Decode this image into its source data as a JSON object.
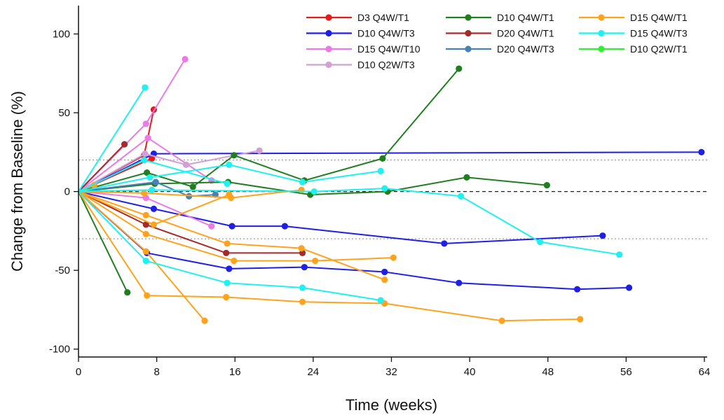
{
  "chart_data": {
    "type": "line",
    "xlabel": "Time (weeks)",
    "ylabel": "Change from Baseline (%)",
    "xlim": [
      0,
      64
    ],
    "ylim": [
      -105,
      118
    ],
    "xticks": [
      0,
      8,
      16,
      24,
      32,
      40,
      48,
      56,
      64
    ],
    "yticks": [
      -100,
      -50,
      0,
      50,
      100
    ],
    "xtick_labels": [
      "0",
      "8",
      "16",
      "24",
      "32",
      "40",
      "48",
      "56",
      "64"
    ],
    "ytick_labels": [
      "-100",
      "-50",
      "0",
      "50",
      "100"
    ],
    "reference_lines": [
      {
        "y": 0,
        "style": "dashed"
      },
      {
        "y": 20,
        "style": "dotted"
      },
      {
        "y": -30,
        "style": "dotted"
      }
    ],
    "legend_position": "top-right",
    "legend": [
      {
        "name": "D3 Q4W/T1",
        "color": "#e8191b"
      },
      {
        "name": "D10 Q4W/T3",
        "color": "#1f1fe6"
      },
      {
        "name": "D15 Q4W/T10",
        "color": "#ea7ae6"
      },
      {
        "name": "D10 Q2W/T3",
        "color": "#d39fd6"
      },
      {
        "name": "D10 Q4W/T1",
        "color": "#1f7f1f"
      },
      {
        "name": "D20 Q4W/T1",
        "color": "#a52a2a"
      },
      {
        "name": "D20 Q4W/T3",
        "color": "#4682b4"
      },
      {
        "name": "D15 Q4W/T1",
        "color": "#ffa21c"
      },
      {
        "name": "D15 Q4W/T3",
        "color": "#1ff0f0"
      },
      {
        "name": "D10 Q2W/T1",
        "color": "#33ee33"
      }
    ],
    "series": [
      {
        "group": "D3 Q4W/T1",
        "color": "#e8191b",
        "points": [
          [
            0,
            0
          ],
          [
            6.7,
            23
          ],
          [
            7.7,
            52
          ]
        ]
      },
      {
        "group": "D3 Q4W/T1",
        "color": "#e8191b",
        "points": [
          [
            0,
            0
          ],
          [
            7.5,
            21
          ]
        ]
      },
      {
        "group": "D10 Q4W/T3",
        "color": "#1f1fe6",
        "points": [
          [
            0,
            0
          ],
          [
            7.7,
            24
          ],
          [
            63.7,
            25
          ]
        ]
      },
      {
        "group": "D10 Q4W/T3",
        "color": "#1f1fe6",
        "points": [
          [
            0,
            0
          ],
          [
            7.7,
            -11
          ],
          [
            15.7,
            -22
          ],
          [
            21.1,
            -22
          ],
          [
            37.4,
            -33
          ],
          [
            53.6,
            -28
          ]
        ]
      },
      {
        "group": "D10 Q4W/T3",
        "color": "#1f1fe6",
        "points": [
          [
            0,
            0
          ],
          [
            7,
            -39
          ],
          [
            15.4,
            -49
          ],
          [
            23.1,
            -48
          ],
          [
            31.3,
            -51
          ],
          [
            38.9,
            -58
          ],
          [
            51,
            -62
          ],
          [
            56.3,
            -61
          ]
        ]
      },
      {
        "group": "D15 Q4W/T10",
        "color": "#ea7ae6",
        "points": [
          [
            0,
            0
          ],
          [
            6.9,
            43
          ],
          [
            10.9,
            84
          ]
        ]
      },
      {
        "group": "D15 Q4W/T10",
        "color": "#ea7ae6",
        "points": [
          [
            0,
            0
          ],
          [
            7.1,
            34
          ],
          [
            13.6,
            7
          ]
        ]
      },
      {
        "group": "D15 Q4W/T10",
        "color": "#ea7ae6",
        "points": [
          [
            0,
            0
          ],
          [
            6.9,
            -4
          ],
          [
            13.6,
            -22
          ]
        ]
      },
      {
        "group": "D10 Q2W/T3",
        "color": "#d39fd6",
        "points": [
          [
            0,
            0
          ],
          [
            6.8,
            24
          ],
          [
            11,
            17
          ],
          [
            18.5,
            26
          ]
        ]
      },
      {
        "group": "D10 Q4W/T1",
        "color": "#1f7f1f",
        "points": [
          [
            0,
            0
          ],
          [
            5,
            -64
          ]
        ]
      },
      {
        "group": "D10 Q4W/T1",
        "color": "#1f7f1f",
        "points": [
          [
            0,
            0
          ],
          [
            7,
            12
          ],
          [
            11.7,
            3
          ],
          [
            15.9,
            23
          ],
          [
            23.1,
            7
          ],
          [
            31.1,
            21
          ],
          [
            38.9,
            78
          ]
        ]
      },
      {
        "group": "D10 Q4W/T1",
        "color": "#1f7f1f",
        "points": [
          [
            0,
            0
          ],
          [
            7.8,
            5
          ],
          [
            15.3,
            6
          ],
          [
            23.7,
            -2
          ],
          [
            31.6,
            0
          ],
          [
            39.7,
            9
          ],
          [
            47.9,
            4
          ]
        ]
      },
      {
        "group": "D20 Q4W/T1",
        "color": "#a52a2a",
        "points": [
          [
            0,
            0
          ],
          [
            4.7,
            30
          ]
        ]
      },
      {
        "group": "D20 Q4W/T1",
        "color": "#a52a2a",
        "points": [
          [
            0,
            0
          ],
          [
            6.9,
            -21
          ],
          [
            15.1,
            -39
          ],
          [
            22.9,
            -39
          ]
        ]
      },
      {
        "group": "D20 Q4W/T3",
        "color": "#4682b4",
        "points": [
          [
            0,
            0
          ],
          [
            7.9,
            6
          ],
          [
            11.3,
            -3
          ],
          [
            14,
            -2
          ]
        ]
      },
      {
        "group": "D15 Q4W/T1",
        "color": "#ffa21c",
        "points": [
          [
            0,
            0
          ],
          [
            1.6,
            4
          ]
        ]
      },
      {
        "group": "D15 Q4W/T1",
        "color": "#ffa21c",
        "points": [
          [
            0,
            0
          ],
          [
            6.7,
            -1
          ],
          [
            15.6,
            -4
          ],
          [
            22.8,
            1
          ]
        ]
      },
      {
        "group": "D15 Q4W/T1",
        "color": "#ffa21c",
        "points": [
          [
            0,
            0
          ],
          [
            7.7,
            -21
          ],
          [
            15.4,
            -2
          ]
        ]
      },
      {
        "group": "D15 Q4W/T1",
        "color": "#ffa21c",
        "points": [
          [
            0,
            0
          ],
          [
            6.9,
            -15
          ],
          [
            15.2,
            -33
          ],
          [
            22.8,
            -36
          ],
          [
            31.3,
            -56
          ]
        ]
      },
      {
        "group": "D15 Q4W/T1",
        "color": "#ffa21c",
        "points": [
          [
            0,
            0
          ],
          [
            6.9,
            -27
          ],
          [
            15.9,
            -44
          ],
          [
            24.2,
            -44
          ],
          [
            32.2,
            -42
          ]
        ]
      },
      {
        "group": "D15 Q4W/T1",
        "color": "#ffa21c",
        "points": [
          [
            0,
            0
          ],
          [
            7,
            -66
          ],
          [
            15.1,
            -67
          ],
          [
            22.9,
            -70
          ],
          [
            31.3,
            -71
          ],
          [
            43.3,
            -82
          ],
          [
            51.3,
            -81
          ]
        ]
      },
      {
        "group": "D15 Q4W/T1",
        "color": "#ffa21c",
        "points": [
          [
            0,
            0
          ],
          [
            6.9,
            -38
          ],
          [
            12.9,
            -82
          ]
        ]
      },
      {
        "group": "D15 Q4W/T3",
        "color": "#1ff0f0",
        "points": [
          [
            0,
            0
          ],
          [
            6.8,
            66
          ]
        ]
      },
      {
        "group": "D15 Q4W/T3",
        "color": "#1ff0f0",
        "points": [
          [
            0,
            0
          ],
          [
            6.7,
            20
          ],
          [
            15.2,
            5
          ]
        ]
      },
      {
        "group": "D15 Q4W/T3",
        "color": "#1ff0f0",
        "points": [
          [
            0,
            0
          ],
          [
            7.3,
            9
          ],
          [
            15.4,
            17
          ],
          [
            22.9,
            6
          ],
          [
            30.9,
            13
          ]
        ]
      },
      {
        "group": "D15 Q4W/T3",
        "color": "#1ff0f0",
        "points": [
          [
            0,
            0
          ],
          [
            7.5,
            1
          ],
          [
            24.1,
            0
          ],
          [
            31.3,
            2
          ],
          [
            39.1,
            -3
          ],
          [
            47.2,
            -32
          ],
          [
            55.3,
            -40
          ]
        ]
      },
      {
        "group": "D15 Q4W/T3",
        "color": "#1ff0f0",
        "points": [
          [
            0,
            0
          ],
          [
            6.9,
            -44
          ],
          [
            15.2,
            -58
          ],
          [
            22.9,
            -61
          ],
          [
            30.9,
            -69
          ]
        ]
      }
    ]
  }
}
